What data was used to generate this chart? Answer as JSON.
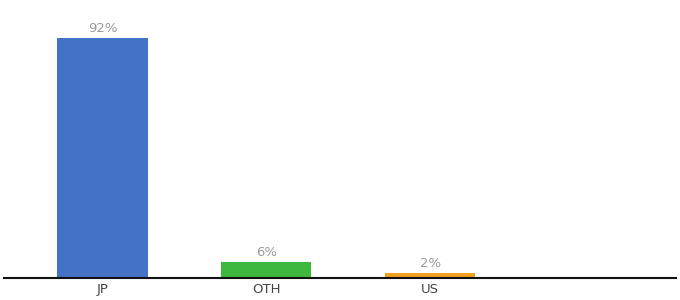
{
  "categories": [
    "JP",
    "OTH",
    "US"
  ],
  "values": [
    92,
    6,
    2
  ],
  "bar_colors": [
    "#4472c4",
    "#3db83d",
    "#f0a020"
  ],
  "labels": [
    "92%",
    "6%",
    "2%"
  ],
  "background_color": "#ffffff",
  "ylim": [
    0,
    105
  ],
  "bar_width": 0.55,
  "label_fontsize": 9.5,
  "tick_fontsize": 9.5,
  "x_positions": [
    0,
    1,
    2
  ]
}
